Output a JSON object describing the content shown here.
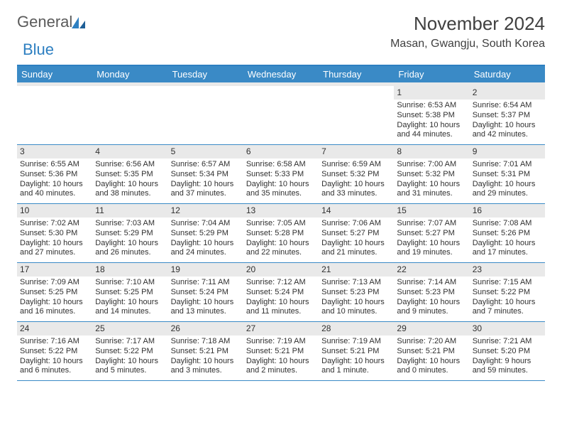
{
  "logo": {
    "text1": "General",
    "text2": "Blue"
  },
  "header": {
    "month_title": "November 2024",
    "location": "Masan, Gwangju, South Korea"
  },
  "colors": {
    "header_bg": "#3a8ac6",
    "header_border": "#2d7fc1",
    "daynum_bg": "#e9e9e9",
    "text": "#303030"
  },
  "weekdays": [
    "Sunday",
    "Monday",
    "Tuesday",
    "Wednesday",
    "Thursday",
    "Friday",
    "Saturday"
  ],
  "weeks": [
    [
      {
        "n": "",
        "sr": "",
        "ss": "",
        "dl": ""
      },
      {
        "n": "",
        "sr": "",
        "ss": "",
        "dl": ""
      },
      {
        "n": "",
        "sr": "",
        "ss": "",
        "dl": ""
      },
      {
        "n": "",
        "sr": "",
        "ss": "",
        "dl": ""
      },
      {
        "n": "",
        "sr": "",
        "ss": "",
        "dl": ""
      },
      {
        "n": "1",
        "sr": "Sunrise: 6:53 AM",
        "ss": "Sunset: 5:38 PM",
        "dl": "Daylight: 10 hours and 44 minutes."
      },
      {
        "n": "2",
        "sr": "Sunrise: 6:54 AM",
        "ss": "Sunset: 5:37 PM",
        "dl": "Daylight: 10 hours and 42 minutes."
      }
    ],
    [
      {
        "n": "3",
        "sr": "Sunrise: 6:55 AM",
        "ss": "Sunset: 5:36 PM",
        "dl": "Daylight: 10 hours and 40 minutes."
      },
      {
        "n": "4",
        "sr": "Sunrise: 6:56 AM",
        "ss": "Sunset: 5:35 PM",
        "dl": "Daylight: 10 hours and 38 minutes."
      },
      {
        "n": "5",
        "sr": "Sunrise: 6:57 AM",
        "ss": "Sunset: 5:34 PM",
        "dl": "Daylight: 10 hours and 37 minutes."
      },
      {
        "n": "6",
        "sr": "Sunrise: 6:58 AM",
        "ss": "Sunset: 5:33 PM",
        "dl": "Daylight: 10 hours and 35 minutes."
      },
      {
        "n": "7",
        "sr": "Sunrise: 6:59 AM",
        "ss": "Sunset: 5:32 PM",
        "dl": "Daylight: 10 hours and 33 minutes."
      },
      {
        "n": "8",
        "sr": "Sunrise: 7:00 AM",
        "ss": "Sunset: 5:32 PM",
        "dl": "Daylight: 10 hours and 31 minutes."
      },
      {
        "n": "9",
        "sr": "Sunrise: 7:01 AM",
        "ss": "Sunset: 5:31 PM",
        "dl": "Daylight: 10 hours and 29 minutes."
      }
    ],
    [
      {
        "n": "10",
        "sr": "Sunrise: 7:02 AM",
        "ss": "Sunset: 5:30 PM",
        "dl": "Daylight: 10 hours and 27 minutes."
      },
      {
        "n": "11",
        "sr": "Sunrise: 7:03 AM",
        "ss": "Sunset: 5:29 PM",
        "dl": "Daylight: 10 hours and 26 minutes."
      },
      {
        "n": "12",
        "sr": "Sunrise: 7:04 AM",
        "ss": "Sunset: 5:29 PM",
        "dl": "Daylight: 10 hours and 24 minutes."
      },
      {
        "n": "13",
        "sr": "Sunrise: 7:05 AM",
        "ss": "Sunset: 5:28 PM",
        "dl": "Daylight: 10 hours and 22 minutes."
      },
      {
        "n": "14",
        "sr": "Sunrise: 7:06 AM",
        "ss": "Sunset: 5:27 PM",
        "dl": "Daylight: 10 hours and 21 minutes."
      },
      {
        "n": "15",
        "sr": "Sunrise: 7:07 AM",
        "ss": "Sunset: 5:27 PM",
        "dl": "Daylight: 10 hours and 19 minutes."
      },
      {
        "n": "16",
        "sr": "Sunrise: 7:08 AM",
        "ss": "Sunset: 5:26 PM",
        "dl": "Daylight: 10 hours and 17 minutes."
      }
    ],
    [
      {
        "n": "17",
        "sr": "Sunrise: 7:09 AM",
        "ss": "Sunset: 5:25 PM",
        "dl": "Daylight: 10 hours and 16 minutes."
      },
      {
        "n": "18",
        "sr": "Sunrise: 7:10 AM",
        "ss": "Sunset: 5:25 PM",
        "dl": "Daylight: 10 hours and 14 minutes."
      },
      {
        "n": "19",
        "sr": "Sunrise: 7:11 AM",
        "ss": "Sunset: 5:24 PM",
        "dl": "Daylight: 10 hours and 13 minutes."
      },
      {
        "n": "20",
        "sr": "Sunrise: 7:12 AM",
        "ss": "Sunset: 5:24 PM",
        "dl": "Daylight: 10 hours and 11 minutes."
      },
      {
        "n": "21",
        "sr": "Sunrise: 7:13 AM",
        "ss": "Sunset: 5:23 PM",
        "dl": "Daylight: 10 hours and 10 minutes."
      },
      {
        "n": "22",
        "sr": "Sunrise: 7:14 AM",
        "ss": "Sunset: 5:23 PM",
        "dl": "Daylight: 10 hours and 9 minutes."
      },
      {
        "n": "23",
        "sr": "Sunrise: 7:15 AM",
        "ss": "Sunset: 5:22 PM",
        "dl": "Daylight: 10 hours and 7 minutes."
      }
    ],
    [
      {
        "n": "24",
        "sr": "Sunrise: 7:16 AM",
        "ss": "Sunset: 5:22 PM",
        "dl": "Daylight: 10 hours and 6 minutes."
      },
      {
        "n": "25",
        "sr": "Sunrise: 7:17 AM",
        "ss": "Sunset: 5:22 PM",
        "dl": "Daylight: 10 hours and 5 minutes."
      },
      {
        "n": "26",
        "sr": "Sunrise: 7:18 AM",
        "ss": "Sunset: 5:21 PM",
        "dl": "Daylight: 10 hours and 3 minutes."
      },
      {
        "n": "27",
        "sr": "Sunrise: 7:19 AM",
        "ss": "Sunset: 5:21 PM",
        "dl": "Daylight: 10 hours and 2 minutes."
      },
      {
        "n": "28",
        "sr": "Sunrise: 7:19 AM",
        "ss": "Sunset: 5:21 PM",
        "dl": "Daylight: 10 hours and 1 minute."
      },
      {
        "n": "29",
        "sr": "Sunrise: 7:20 AM",
        "ss": "Sunset: 5:21 PM",
        "dl": "Daylight: 10 hours and 0 minutes."
      },
      {
        "n": "30",
        "sr": "Sunrise: 7:21 AM",
        "ss": "Sunset: 5:20 PM",
        "dl": "Daylight: 9 hours and 59 minutes."
      }
    ]
  ]
}
